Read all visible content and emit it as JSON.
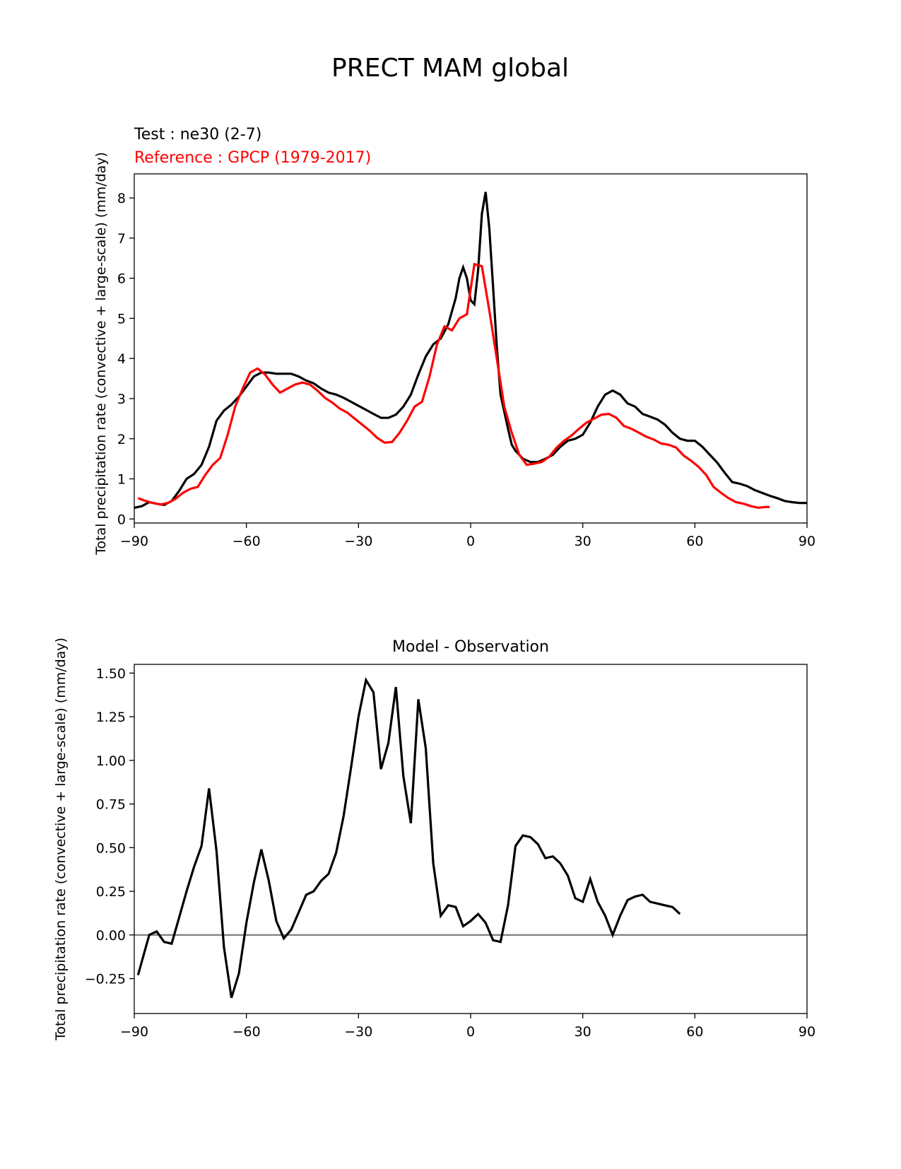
{
  "figure": {
    "title": "PRECT MAM global"
  },
  "chart_data": [
    {
      "type": "line",
      "subtitle_test": "Test : ne30 (2-7)",
      "subtitle_reference": "Reference : GPCP (1979-2017)",
      "ylabel": "Total precipitation rate (convective + large-scale) (mm/day)",
      "xlim": [
        -90,
        90
      ],
      "ylim": [
        -0.1,
        8.6
      ],
      "xticks": [
        -90,
        -60,
        -30,
        0,
        30,
        60,
        90
      ],
      "xtick_labels": [
        "−90",
        "−60",
        "−30",
        "0",
        "30",
        "60",
        "90"
      ],
      "yticks": [
        0,
        1,
        2,
        3,
        4,
        5,
        6,
        7,
        8
      ],
      "ytick_labels": [
        "0",
        "1",
        "2",
        "3",
        "4",
        "5",
        "6",
        "7",
        "8"
      ],
      "grid": false,
      "series": [
        {
          "color": "#000000",
          "points": [
            [
              -90,
              0.28
            ],
            [
              -88,
              0.32
            ],
            [
              -86,
              0.42
            ],
            [
              -84,
              0.38
            ],
            [
              -82,
              0.35
            ],
            [
              -80,
              0.45
            ],
            [
              -78,
              0.7
            ],
            [
              -76,
              1.0
            ],
            [
              -74,
              1.12
            ],
            [
              -72,
              1.35
            ],
            [
              -70,
              1.8
            ],
            [
              -68,
              2.45
            ],
            [
              -66,
              2.7
            ],
            [
              -64,
              2.85
            ],
            [
              -62,
              3.05
            ],
            [
              -60,
              3.3
            ],
            [
              -58,
              3.55
            ],
            [
              -56,
              3.65
            ],
            [
              -54,
              3.65
            ],
            [
              -52,
              3.62
            ],
            [
              -50,
              3.62
            ],
            [
              -48,
              3.62
            ],
            [
              -46,
              3.55
            ],
            [
              -44,
              3.45
            ],
            [
              -42,
              3.38
            ],
            [
              -40,
              3.25
            ],
            [
              -38,
              3.15
            ],
            [
              -36,
              3.1
            ],
            [
              -34,
              3.02
            ],
            [
              -32,
              2.92
            ],
            [
              -30,
              2.82
            ],
            [
              -28,
              2.72
            ],
            [
              -26,
              2.62
            ],
            [
              -24,
              2.52
            ],
            [
              -22,
              2.52
            ],
            [
              -20,
              2.6
            ],
            [
              -18,
              2.8
            ],
            [
              -16,
              3.1
            ],
            [
              -14,
              3.6
            ],
            [
              -12,
              4.05
            ],
            [
              -10,
              4.35
            ],
            [
              -8,
              4.5
            ],
            [
              -6,
              4.85
            ],
            [
              -4,
              5.5
            ],
            [
              -3,
              6.0
            ],
            [
              -2,
              6.27
            ],
            [
              -1,
              6.0
            ],
            [
              0,
              5.45
            ],
            [
              1,
              5.35
            ],
            [
              2,
              6.2
            ],
            [
              3,
              7.6
            ],
            [
              4,
              8.15
            ],
            [
              5,
              7.25
            ],
            [
              6,
              5.8
            ],
            [
              7,
              4.3
            ],
            [
              8,
              3.1
            ],
            [
              10,
              2.25
            ],
            [
              11,
              1.85
            ],
            [
              12,
              1.7
            ],
            [
              14,
              1.5
            ],
            [
              16,
              1.42
            ],
            [
              18,
              1.42
            ],
            [
              20,
              1.5
            ],
            [
              22,
              1.6
            ],
            [
              24,
              1.8
            ],
            [
              26,
              1.95
            ],
            [
              28,
              2.0
            ],
            [
              30,
              2.1
            ],
            [
              32,
              2.4
            ],
            [
              34,
              2.8
            ],
            [
              36,
              3.1
            ],
            [
              38,
              3.2
            ],
            [
              40,
              3.1
            ],
            [
              42,
              2.88
            ],
            [
              44,
              2.8
            ],
            [
              46,
              2.62
            ],
            [
              48,
              2.55
            ],
            [
              50,
              2.48
            ],
            [
              52,
              2.35
            ],
            [
              54,
              2.15
            ],
            [
              56,
              2.0
            ],
            [
              58,
              1.95
            ],
            [
              60,
              1.95
            ],
            [
              62,
              1.8
            ],
            [
              64,
              1.6
            ],
            [
              66,
              1.4
            ],
            [
              68,
              1.15
            ],
            [
              70,
              0.92
            ],
            [
              72,
              0.88
            ],
            [
              74,
              0.82
            ],
            [
              76,
              0.72
            ],
            [
              78,
              0.65
            ],
            [
              80,
              0.58
            ],
            [
              82,
              0.52
            ],
            [
              84,
              0.45
            ],
            [
              86,
              0.42
            ],
            [
              88,
              0.4
            ],
            [
              90,
              0.4
            ]
          ]
        },
        {
          "color": "#ff0000",
          "points": [
            [
              -89,
              0.52
            ],
            [
              -87,
              0.45
            ],
            [
              -85,
              0.4
            ],
            [
              -83,
              0.36
            ],
            [
              -81,
              0.4
            ],
            [
              -79,
              0.5
            ],
            [
              -77,
              0.65
            ],
            [
              -75,
              0.75
            ],
            [
              -73,
              0.8
            ],
            [
              -71,
              1.1
            ],
            [
              -69,
              1.35
            ],
            [
              -67,
              1.52
            ],
            [
              -65,
              2.1
            ],
            [
              -63,
              2.8
            ],
            [
              -61,
              3.25
            ],
            [
              -59,
              3.65
            ],
            [
              -57,
              3.75
            ],
            [
              -55,
              3.6
            ],
            [
              -53,
              3.35
            ],
            [
              -51,
              3.15
            ],
            [
              -49,
              3.25
            ],
            [
              -47,
              3.35
            ],
            [
              -45,
              3.4
            ],
            [
              -43,
              3.35
            ],
            [
              -41,
              3.2
            ],
            [
              -39,
              3.02
            ],
            [
              -37,
              2.9
            ],
            [
              -35,
              2.75
            ],
            [
              -33,
              2.65
            ],
            [
              -31,
              2.5
            ],
            [
              -29,
              2.35
            ],
            [
              -27,
              2.2
            ],
            [
              -25,
              2.02
            ],
            [
              -23,
              1.9
            ],
            [
              -21,
              1.92
            ],
            [
              -19,
              2.15
            ],
            [
              -17,
              2.45
            ],
            [
              -15,
              2.8
            ],
            [
              -13,
              2.92
            ],
            [
              -11,
              3.55
            ],
            [
              -9,
              4.35
            ],
            [
              -7,
              4.8
            ],
            [
              -5,
              4.7
            ],
            [
              -3,
              5.0
            ],
            [
              -1,
              5.1
            ],
            [
              1,
              6.35
            ],
            [
              3,
              6.3
            ],
            [
              5,
              5.2
            ],
            [
              7,
              4.0
            ],
            [
              9,
              2.8
            ],
            [
              11,
              2.15
            ],
            [
              13,
              1.6
            ],
            [
              15,
              1.35
            ],
            [
              17,
              1.38
            ],
            [
              19,
              1.42
            ],
            [
              21,
              1.55
            ],
            [
              23,
              1.78
            ],
            [
              25,
              1.95
            ],
            [
              27,
              2.08
            ],
            [
              29,
              2.25
            ],
            [
              31,
              2.4
            ],
            [
              33,
              2.5
            ],
            [
              35,
              2.6
            ],
            [
              37,
              2.62
            ],
            [
              39,
              2.52
            ],
            [
              41,
              2.32
            ],
            [
              43,
              2.25
            ],
            [
              45,
              2.15
            ],
            [
              47,
              2.05
            ],
            [
              49,
              1.98
            ],
            [
              51,
              1.88
            ],
            [
              53,
              1.85
            ],
            [
              55,
              1.78
            ],
            [
              57,
              1.58
            ],
            [
              59,
              1.45
            ],
            [
              61,
              1.3
            ],
            [
              63,
              1.1
            ],
            [
              65,
              0.8
            ],
            [
              67,
              0.65
            ],
            [
              69,
              0.52
            ],
            [
              71,
              0.42
            ],
            [
              73,
              0.38
            ],
            [
              75,
              0.32
            ],
            [
              77,
              0.28
            ],
            [
              79,
              0.3
            ],
            [
              80,
              0.3
            ]
          ]
        }
      ]
    },
    {
      "type": "line",
      "title": "Model - Observation",
      "ylabel": "Total precipitation rate (convective + large-scale) (mm/day)",
      "xlim": [
        -90,
        90
      ],
      "ylim": [
        -0.45,
        1.55
      ],
      "xticks": [
        -90,
        -60,
        -30,
        0,
        30,
        60,
        90
      ],
      "xtick_labels": [
        "−90",
        "−60",
        "−30",
        "0",
        "30",
        "60",
        "90"
      ],
      "yticks": [
        -0.25,
        0.0,
        0.25,
        0.5,
        0.75,
        1.0,
        1.25,
        1.5
      ],
      "ytick_labels": [
        "−0.25",
        "0.00",
        "0.25",
        "0.50",
        "0.75",
        "1.00",
        "1.25",
        "1.50"
      ],
      "grid": false,
      "zero_line_color": "#808080",
      "series": [
        {
          "color": "#000000",
          "points": [
            [
              -89,
              -0.23
            ],
            [
              -86,
              0.0
            ],
            [
              -84,
              0.02
            ],
            [
              -82,
              -0.04
            ],
            [
              -80,
              -0.05
            ],
            [
              -78,
              0.1
            ],
            [
              -76,
              0.25
            ],
            [
              -74,
              0.39
            ],
            [
              -72,
              0.51
            ],
            [
              -70,
              0.84
            ],
            [
              -68,
              0.48
            ],
            [
              -66,
              -0.07
            ],
            [
              -64,
              -0.36
            ],
            [
              -62,
              -0.22
            ],
            [
              -60,
              0.07
            ],
            [
              -58,
              0.3
            ],
            [
              -56,
              0.49
            ],
            [
              -54,
              0.31
            ],
            [
              -52,
              0.08
            ],
            [
              -50,
              -0.02
            ],
            [
              -48,
              0.03
            ],
            [
              -46,
              0.13
            ],
            [
              -44,
              0.23
            ],
            [
              -42,
              0.25
            ],
            [
              -40,
              0.31
            ],
            [
              -38,
              0.35
            ],
            [
              -36,
              0.47
            ],
            [
              -34,
              0.68
            ],
            [
              -32,
              0.96
            ],
            [
              -30,
              1.25
            ],
            [
              -28,
              1.46
            ],
            [
              -26,
              1.39
            ],
            [
              -24,
              0.95
            ],
            [
              -22,
              1.1
            ],
            [
              -20,
              1.42
            ],
            [
              -18,
              0.91
            ],
            [
              -16,
              0.64
            ],
            [
              -14,
              1.35
            ],
            [
              -12,
              1.07
            ],
            [
              -10,
              0.41
            ],
            [
              -8,
              0.11
            ],
            [
              -6,
              0.17
            ],
            [
              -4,
              0.16
            ],
            [
              -2,
              0.05
            ],
            [
              0,
              0.08
            ],
            [
              2,
              0.12
            ],
            [
              4,
              0.07
            ],
            [
              6,
              -0.03
            ],
            [
              8,
              -0.04
            ],
            [
              10,
              0.17
            ],
            [
              12,
              0.51
            ],
            [
              14,
              0.57
            ],
            [
              16,
              0.56
            ],
            [
              18,
              0.52
            ],
            [
              20,
              0.44
            ],
            [
              22,
              0.45
            ],
            [
              24,
              0.41
            ],
            [
              26,
              0.34
            ],
            [
              28,
              0.21
            ],
            [
              30,
              0.19
            ],
            [
              32,
              0.32
            ],
            [
              34,
              0.19
            ],
            [
              36,
              0.11
            ],
            [
              38,
              0.0
            ],
            [
              40,
              0.11
            ],
            [
              42,
              0.2
            ],
            [
              44,
              0.22
            ],
            [
              46,
              0.23
            ],
            [
              48,
              0.19
            ],
            [
              50,
              0.18
            ],
            [
              52,
              0.17
            ],
            [
              54,
              0.16
            ],
            [
              56,
              0.12
            ]
          ]
        }
      ]
    }
  ]
}
